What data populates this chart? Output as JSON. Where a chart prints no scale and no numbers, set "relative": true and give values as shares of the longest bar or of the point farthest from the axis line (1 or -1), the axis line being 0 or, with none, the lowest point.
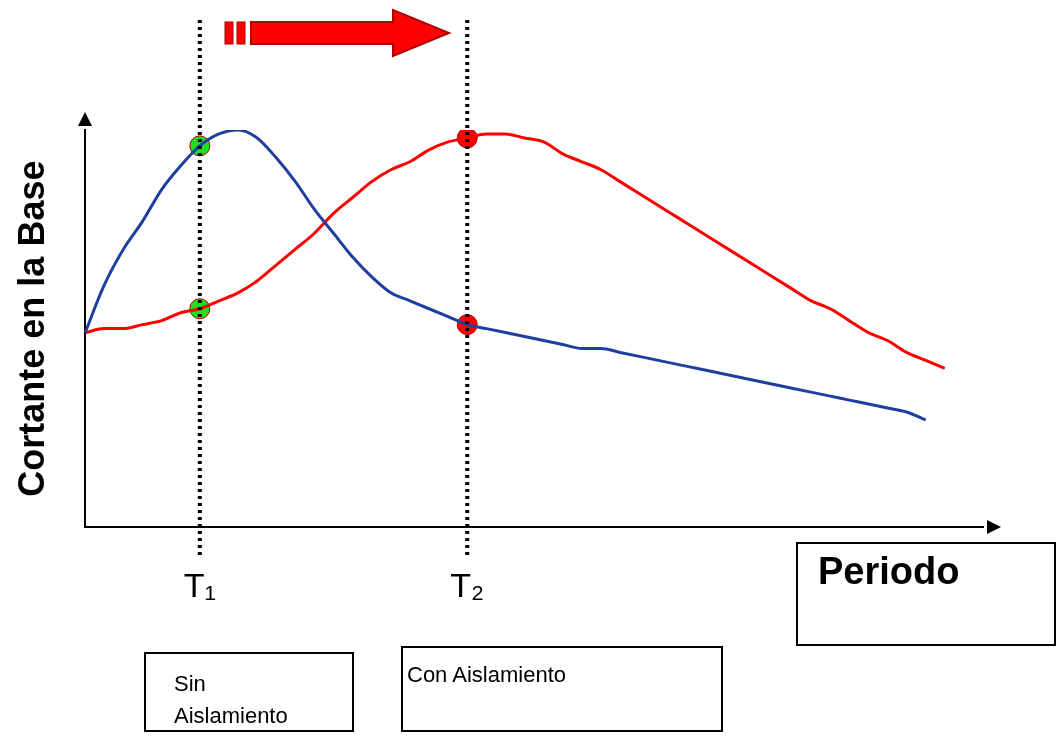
{
  "chart_data": {
    "type": "line",
    "relative": true,
    "ylabel": "Cortante en la Base",
    "xlabel": "Periodo",
    "legend": false,
    "grid": false,
    "marker": "none",
    "line_style": "solid",
    "categories": [
      null,
      null,
      null,
      null,
      null,
      null,
      "T₁",
      null,
      null,
      null,
      null,
      null,
      null,
      null,
      null,
      null,
      null,
      null,
      null,
      null,
      "T₂",
      null,
      null,
      null,
      null,
      null,
      null,
      null,
      null,
      null,
      null,
      null,
      null,
      null,
      null,
      null,
      null,
      null,
      null,
      null,
      null,
      null,
      null,
      null,
      null,
      null,
      null,
      null
    ],
    "series": [
      {
        "color": "#1f3f9f",
        "values": [
          0.49,
          0.61,
          0.7,
          0.77,
          0.85,
          0.91,
          0.96,
          0.99,
          1.0,
          0.98,
          0.93,
          0.87,
          0.8,
          0.74,
          0.68,
          0.63,
          0.59,
          0.57,
          0.55,
          0.53,
          0.51,
          0.5,
          0.49,
          0.48,
          0.47,
          0.46,
          0.45,
          0.45,
          0.44,
          0.43,
          0.42,
          0.41,
          0.4,
          0.39,
          0.38,
          0.37,
          0.36,
          0.35,
          0.34,
          0.33,
          0.32,
          0.31,
          0.3,
          0.29,
          0.27,
          null,
          null,
          null
        ]
      },
      {
        "color": "#ff0000",
        "values": [
          0.49,
          0.5,
          0.5,
          0.51,
          0.52,
          0.54,
          0.55,
          0.57,
          0.59,
          0.62,
          0.66,
          0.7,
          0.74,
          0.79,
          0.83,
          0.87,
          0.9,
          0.92,
          0.95,
          0.97,
          0.98,
          0.99,
          0.99,
          0.98,
          0.97,
          0.94,
          0.92,
          0.9,
          0.87,
          0.84,
          0.81,
          0.78,
          0.75,
          0.72,
          0.69,
          0.66,
          0.63,
          0.6,
          0.57,
          0.55,
          0.52,
          0.49,
          0.47,
          0.44,
          0.42,
          0.4,
          null,
          null
        ]
      },
      {
        "type": "scatter",
        "marker": "circle",
        "x": [
          "T₁",
          "T₁",
          "T₂",
          "T₂"
        ],
        "values": [
          0.96,
          0.55,
          0.98,
          0.51
        ],
        "colors": [
          "#22dd22",
          "#22dd22",
          "#ff0000",
          "#ff0000"
        ]
      }
    ],
    "ref_lines": [
      {
        "axis": "x",
        "value": "T₁",
        "line_style": "dotted",
        "color": "#000000"
      },
      {
        "axis": "x",
        "value": "T₂",
        "line_style": "dotted",
        "color": "#000000"
      }
    ],
    "annotations": [
      "Sin Aislamiento",
      "Con Aislamiento"
    ]
  }
}
